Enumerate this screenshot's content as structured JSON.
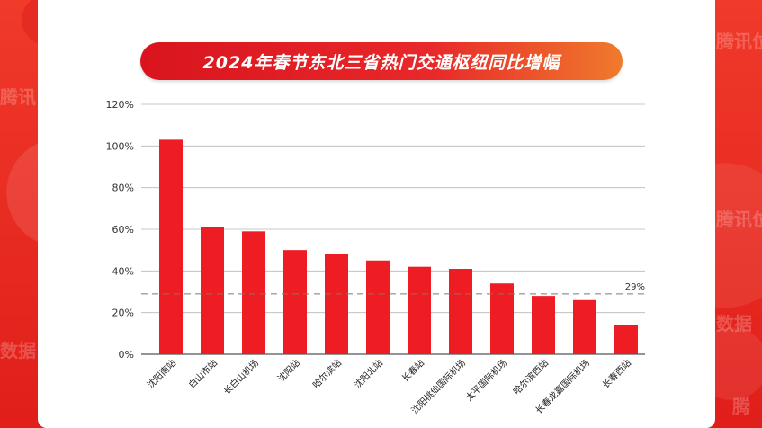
{
  "colors": {
    "bar": "#ee1d23",
    "grid": "#b9b9b9",
    "reference_line": "#7a7a7a",
    "title_start": "#d9141e",
    "title_end": "#f07a2c"
  },
  "watermarks": [
    "腾讯位置",
    "腾讯",
    "腾讯位",
    "数据",
    "数据",
    "腾"
  ],
  "chart_data": {
    "type": "bar",
    "title": "2024年春节东北三省热门交通枢纽同比增幅",
    "categories": [
      "沈阳南站",
      "白山市站",
      "长白山机场",
      "沈阳站",
      "哈尔滨站",
      "沈阳北站",
      "长春站",
      "沈阳桃仙国际机场",
      "太平国际机场",
      "哈尔滨西站",
      "长春龙嘉国际机场",
      "长春西站"
    ],
    "values": [
      103,
      61,
      59,
      50,
      48,
      45,
      42,
      41,
      34,
      28,
      26,
      14
    ],
    "ylim": [
      0,
      120
    ],
    "yticks": [
      0,
      20,
      40,
      60,
      80,
      100,
      120
    ],
    "ytick_labels": [
      "0%",
      "20%",
      "40%",
      "60%",
      "80%",
      "100%",
      "120%"
    ],
    "reference_line": {
      "value": 29,
      "label": "29%"
    },
    "grid": true,
    "xlabel": "",
    "ylabel": ""
  }
}
